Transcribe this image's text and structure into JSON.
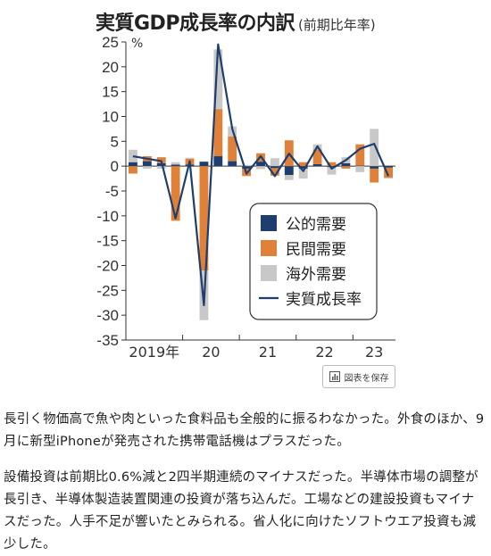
{
  "chart_data": {
    "type": "bar",
    "title": "実質GDP成長率の内訳",
    "subtitle": "(前期比年率)",
    "ylabel": "%",
    "ylim": [
      -35,
      25
    ],
    "yticks": [
      25,
      20,
      15,
      10,
      5,
      0,
      -5,
      -10,
      -15,
      -20,
      -25,
      -30,
      -35
    ],
    "x_labels": [
      "2019年",
      "20",
      "21",
      "22",
      "23"
    ],
    "quarters": [
      "2019Q1",
      "2019Q2",
      "2019Q3",
      "2019Q4",
      "2020Q1",
      "2020Q2",
      "2020Q3",
      "2020Q4",
      "2021Q1",
      "2021Q2",
      "2021Q3",
      "2021Q4",
      "2022Q1",
      "2022Q2",
      "2022Q3",
      "2022Q4",
      "2023Q1",
      "2023Q2",
      "2023Q3"
    ],
    "legend": [
      "公的需要",
      "民間需要",
      "海外需要",
      "実質成長率"
    ],
    "legend_position": "lower-right",
    "colors": {
      "public": "#1d3e6e",
      "private": "#e0813a",
      "overseas": "#c8c8c8",
      "line": "#1d3e6e"
    },
    "series": [
      {
        "name": "公的需要",
        "values": [
          0.8,
          1.0,
          0.6,
          0.3,
          0.3,
          0.9,
          2.0,
          1.0,
          -0.5,
          0.9,
          -0.4,
          -1.8,
          -0.5,
          0.4,
          -0.2,
          0.6,
          0.1,
          -0.5,
          -0.3
        ]
      },
      {
        "name": "民間需要",
        "values": [
          -1.5,
          1.0,
          1.2,
          -11.0,
          1.2,
          -21.0,
          9.5,
          5.0,
          -1.5,
          1.7,
          -1.5,
          5.2,
          0.8,
          3.0,
          0.8,
          -0.5,
          4.3,
          -2.8,
          -2.0
        ]
      },
      {
        "name": "海外需要",
        "values": [
          2.5,
          -0.5,
          -0.5,
          0.5,
          0.2,
          -10.0,
          12.0,
          2.0,
          0.2,
          -0.6,
          1.6,
          -1.0,
          -2.0,
          1.0,
          -1.5,
          1.2,
          -1.2,
          7.5,
          -0.2
        ]
      },
      {
        "name": "実質成長率",
        "values": [
          2.0,
          1.5,
          1.0,
          -10.5,
          1.0,
          -28.0,
          24.5,
          7.5,
          -1.5,
          2.0,
          -2.0,
          2.5,
          -1.0,
          4.0,
          -0.5,
          1.2,
          3.5,
          4.5,
          -2.0
        ]
      }
    ]
  },
  "save_button": {
    "label": "図表を保存",
    "icon": "chart-icon"
  },
  "paragraphs": [
    "長引く物価高で魚や肉といった食料品も全般的に振るわなかった。外食のほか、9月に新型iPhoneが発売された携帯電話機はプラスだった。",
    "設備投資は前期比0.6%減と2四半期連続のマイナスだった。半導体市場の調整が長引き、半導体製造装置関連の投資が落ち込んだ。工場などの建設投資もマイナスだった。人手不足が響いたとみられる。省人化に向けたソフトウエア投資も減少した。"
  ]
}
